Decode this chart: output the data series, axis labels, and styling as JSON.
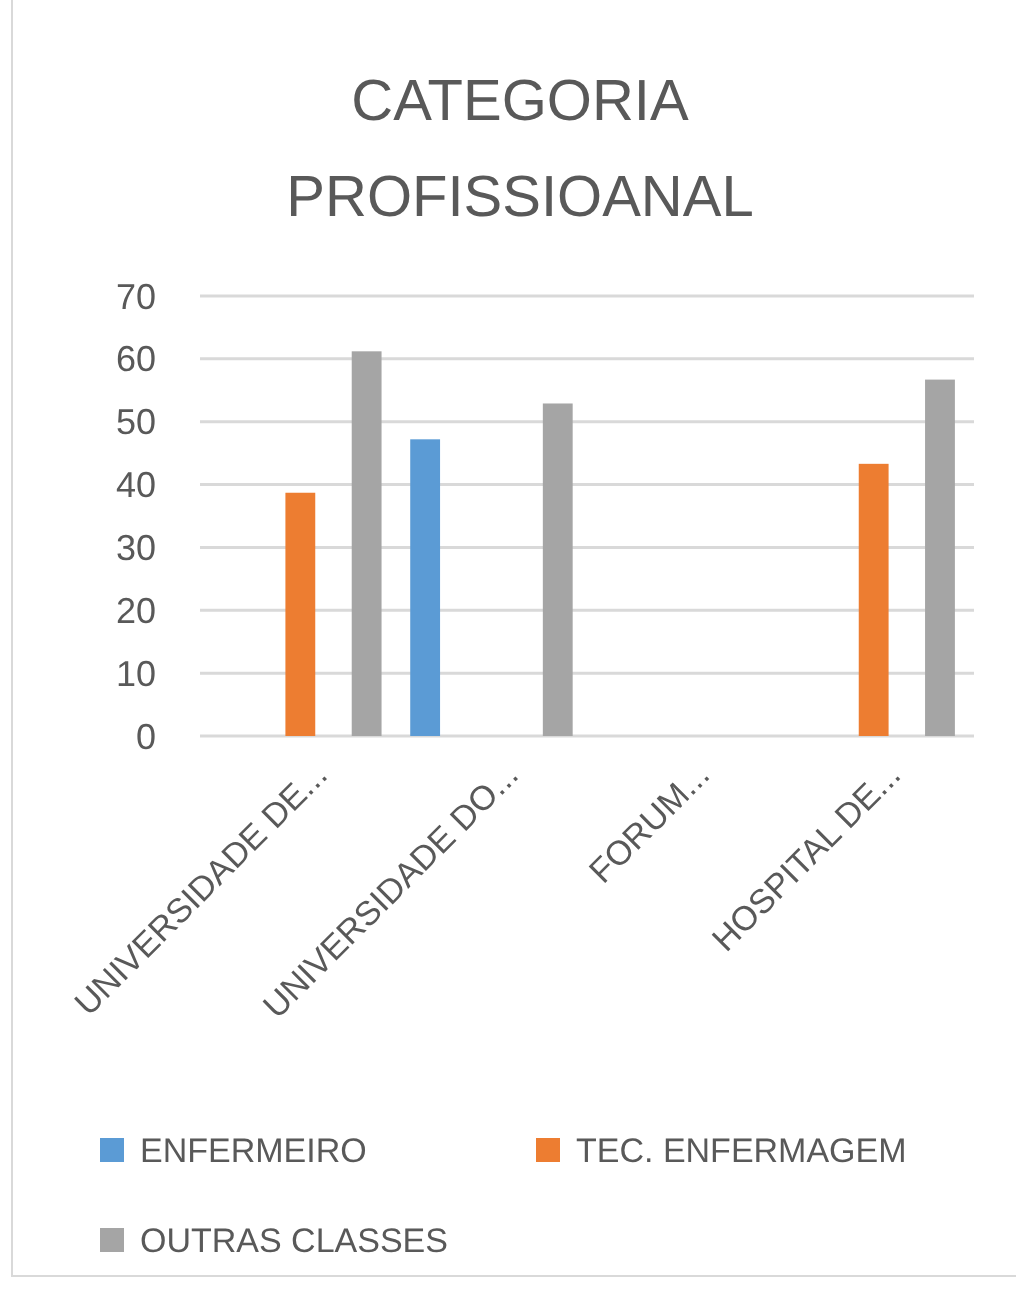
{
  "chart_data": {
    "type": "bar",
    "title": "CATEGORIA PROFISSIOANAL",
    "categories": [
      "UNIVERSIDADE DE...",
      "UNIVERSIDADE DO...",
      "FORUM...",
      "HOSPITAL DE..."
    ],
    "series": [
      {
        "name": "ENFERMEIRO",
        "color": "#5b9bd5",
        "values": [
          null,
          47.2,
          null,
          null
        ]
      },
      {
        "name": "TEC. ENFERMAGEM",
        "color": "#ed7d31",
        "values": [
          38.7,
          null,
          null,
          43.3
        ]
      },
      {
        "name": "OUTRAS CLASSES",
        "color": "#a5a5a5",
        "values": [
          61.2,
          52.9,
          null,
          56.7
        ]
      }
    ],
    "ylim": [
      0,
      70
    ],
    "yticks": [
      0,
      10,
      20,
      30,
      40,
      50,
      60,
      70
    ],
    "grid": "y",
    "legend": "bottom"
  }
}
